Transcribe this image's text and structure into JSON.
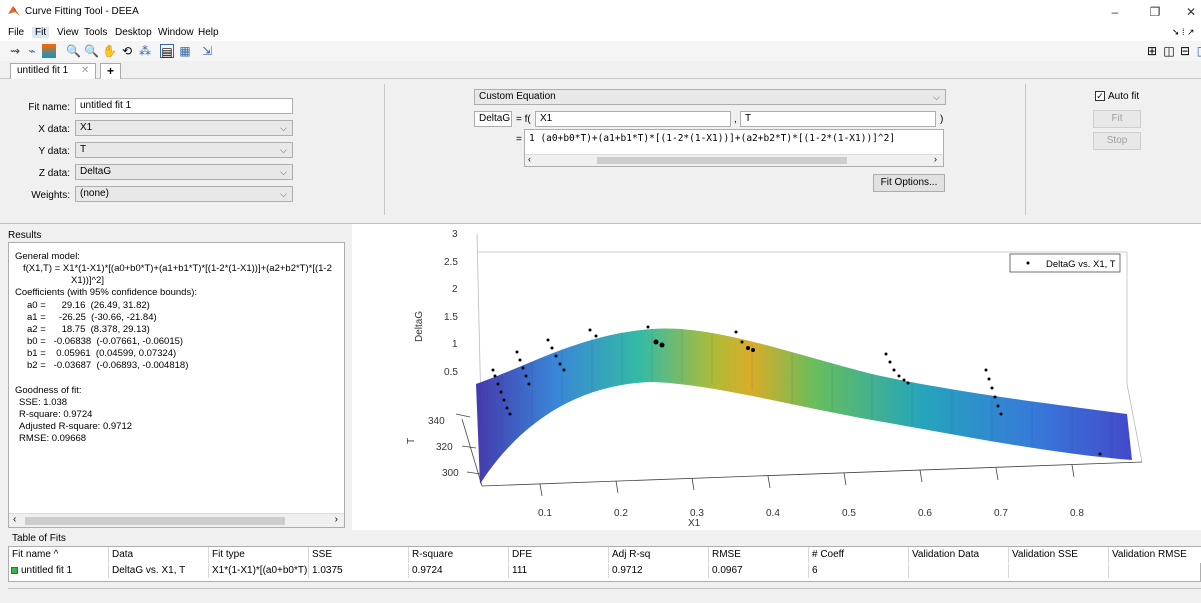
{
  "window": {
    "title": "Curve Fitting Tool - DEEA"
  },
  "menu": [
    "File",
    "Fit",
    "View",
    "Tools",
    "Desktop",
    "Window",
    "Help"
  ],
  "tab": {
    "label": "untitled fit 1"
  },
  "fit_form": {
    "fit_name_label": "Fit name:",
    "fit_name": "untitled fit 1",
    "x_label": "X data:",
    "x_value": "X1",
    "y_label": "Y data:",
    "y_value": "T",
    "z_label": "Z data:",
    "z_value": "DeltaG",
    "w_label": "Weights:",
    "w_value": "(none)"
  },
  "equation": {
    "type": "Custom Equation",
    "output": "DeltaG",
    "f_label": "= f(",
    "var1": "X1",
    "comma": ",",
    "var2": "T",
    "close": ")",
    "eq_label": "=",
    "expr": "1 (a0+b0*T)+(a1+b1*T)*[(1-2*(1-X1))]+(a2+b2*T)*[(1-2*(1-X1))]^2]",
    "fit_options": "Fit Options..."
  },
  "controls": {
    "auto_fit": "Auto fit",
    "fit": "Fit",
    "stop": "Stop"
  },
  "results": {
    "title": "Results",
    "lines": [
      "General model:",
      "f(X1,T) = X1*(1-X1)*[(a0+b0*T)+(a1+b1*T)*[(1-2*(1-X1))]+(a2+b2*T)*[(1-2",
      "X1))]^2]",
      "Coefficients (with 95% confidence bounds):",
      "a0 =      29.16  (26.49, 31.82)",
      "a1 =     -26.25  (-30.66, -21.84)",
      "a2 =      18.75  (8.378, 29.13)",
      "b0 =   -0.06838  (-0.07661, -0.06015)",
      "b1 =    0.05961  (0.04599, 0.07324)",
      "b2 =   -0.03687  (-0.06893, -0.004818)",
      "",
      "Goodness of fit:",
      "SSE: 1.038",
      "R-square: 0.9724",
      "Adjusted R-square: 0.9712",
      "RMSE: 0.09668"
    ]
  },
  "chart_data": {
    "type": "scatter",
    "zlabel": "DeltaG",
    "ylabel": "T",
    "xlabel": "X1",
    "z_ticks": [
      "3",
      "2.5",
      "2",
      "1.5",
      "1",
      "0.5"
    ],
    "y_ticks": [
      "340",
      "320",
      "300"
    ],
    "x_ticks": [
      "0.1",
      "0.2",
      "0.3",
      "0.4",
      "0.5",
      "0.6",
      "0.7",
      "0.8"
    ],
    "legend": "DeltaG vs. X1, T",
    "legend_position": "top-right"
  },
  "table": {
    "title": "Table of Fits",
    "headers": [
      "Fit name ^",
      "Data",
      "Fit type",
      "SSE",
      "R-square",
      "DFE",
      "Adj R-sq",
      "RMSE",
      "# Coeff",
      "Validation Data",
      "Validation SSE",
      "Validation RMSE"
    ],
    "row": [
      "untitled fit 1",
      "DeltaG vs. X1, T",
      "X1*(1-X1)*[(a0+b0*T)...",
      "1.0375",
      "0.9724",
      "111",
      "0.9712",
      "0.0967",
      "6",
      "",
      "",
      ""
    ]
  }
}
